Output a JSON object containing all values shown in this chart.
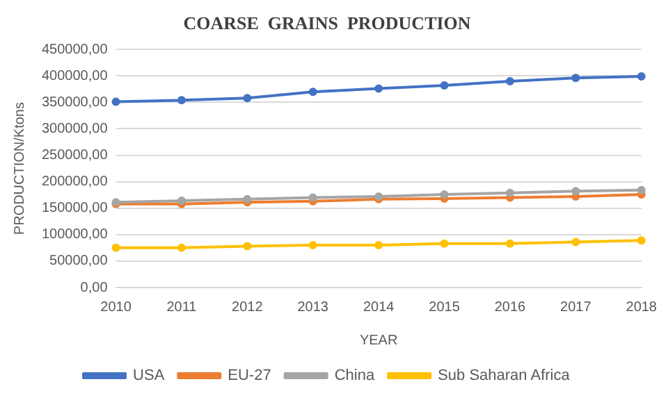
{
  "chart_data": {
    "type": "line",
    "title": "COARSE  GRAINS  PRODUCTION",
    "xlabel": "YEAR",
    "ylabel": "PRODUCTION/Ktons",
    "categories": [
      "2010",
      "2011",
      "2012",
      "2013",
      "2014",
      "2015",
      "2016",
      "2017",
      "2018"
    ],
    "series": [
      {
        "name": "USA",
        "color": "#4472c4",
        "values": [
          351000,
          354000,
          358000,
          370000,
          376000,
          382000,
          390000,
          396000,
          399000
        ]
      },
      {
        "name": "EU-27",
        "color": "#ed7d31",
        "values": [
          158000,
          158000,
          161000,
          163000,
          167000,
          168000,
          170000,
          172000,
          176000
        ]
      },
      {
        "name": "China",
        "color": "#a5a5a5",
        "values": [
          161000,
          164000,
          167000,
          170000,
          172000,
          176000,
          179000,
          182000,
          184000
        ]
      },
      {
        "name": "Sub Saharan Africa",
        "color": "#ffc000",
        "values": [
          75000,
          75000,
          78000,
          80000,
          80000,
          83000,
          83000,
          86000,
          89000
        ]
      }
    ],
    "ylim": [
      0,
      450000
    ],
    "yticks": [
      {
        "value": 0,
        "label": "0,00"
      },
      {
        "value": 50000,
        "label": "50000,00"
      },
      {
        "value": 100000,
        "label": "100000,00"
      },
      {
        "value": 150000,
        "label": "150000,00"
      },
      {
        "value": 200000,
        "label": "200000,00"
      },
      {
        "value": 250000,
        "label": "250000,00"
      },
      {
        "value": 300000,
        "label": "300000,00"
      },
      {
        "value": 350000,
        "label": "350000,00"
      },
      {
        "value": 400000,
        "label": "400000,00"
      },
      {
        "value": 450000,
        "label": "450000,00"
      }
    ],
    "grid": "y",
    "legend": "bottom",
    "marker": "circle",
    "line_style": "solid"
  }
}
